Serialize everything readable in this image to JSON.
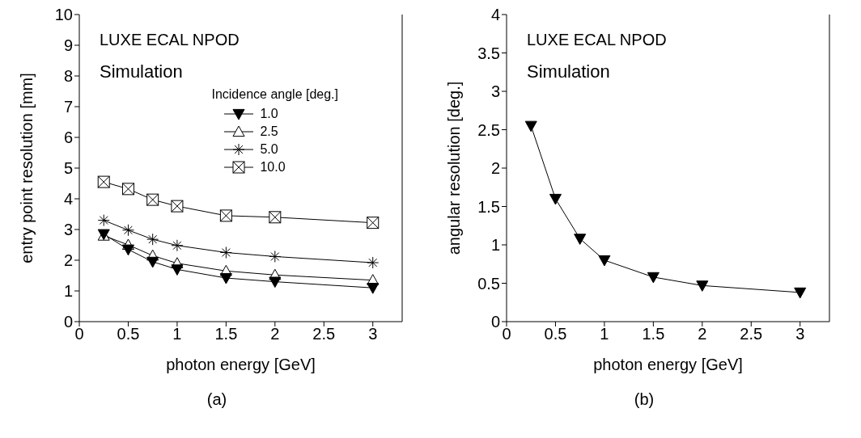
{
  "chart_data": [
    {
      "type": "line",
      "xlabel": "photon energy [GeV]",
      "ylabel": "entry point resolution [mm]",
      "legend_title": "Incidence angle [deg.]",
      "legend": "top right",
      "annotations": [
        "LUXE ECAL NPOD",
        "Simulation",
        "(a)"
      ],
      "x": [
        0.25,
        0.5,
        0.75,
        1,
        1.5,
        2,
        3
      ],
      "xlim": [
        0,
        3.3
      ],
      "xticks": [
        0,
        0.5,
        1,
        1.5,
        2,
        2.5,
        3
      ],
      "ylim": [
        0,
        10
      ],
      "yticks": [
        0,
        1,
        2,
        3,
        4,
        5,
        6,
        7,
        8,
        9,
        10
      ],
      "grid": false,
      "series": [
        {
          "name": "1.0",
          "color": "#000000",
          "marker": "triangle-down",
          "values": [
            2.85,
            2.35,
            1.95,
            1.7,
            1.42,
            1.3,
            1.1
          ]
        },
        {
          "name": "2.5",
          "color": "#000000",
          "marker": "triangle",
          "values": [
            2.8,
            2.5,
            2.15,
            1.9,
            1.65,
            1.52,
            1.35
          ]
        },
        {
          "name": "5.0",
          "color": "#000000",
          "marker": "cross",
          "values": [
            3.3,
            2.98,
            2.68,
            2.48,
            2.25,
            2.12,
            1.92
          ]
        },
        {
          "name": "10.0",
          "color": "#000000",
          "marker": "square",
          "values": [
            4.55,
            4.32,
            3.97,
            3.76,
            3.45,
            3.4,
            3.22
          ]
        }
      ]
    },
    {
      "type": "line",
      "xlabel": "photon energy [GeV]",
      "ylabel": "angular resolution [deg.]",
      "legend": false,
      "annotations": [
        "LUXE ECAL NPOD",
        "Simulation",
        "(b)"
      ],
      "x": [
        0.25,
        0.5,
        0.75,
        1,
        1.5,
        2,
        3
      ],
      "xlim": [
        0,
        3.3
      ],
      "xticks": [
        0,
        0.5,
        1,
        1.5,
        2,
        2.5,
        3
      ],
      "ylim": [
        0,
        4
      ],
      "yticks": [
        0,
        0.5,
        1,
        1.5,
        2,
        2.5,
        3,
        3.5,
        4
      ],
      "grid": false,
      "series": [
        {
          "color": "#000000",
          "marker": "triangle-down",
          "values": [
            2.55,
            1.6,
            1.08,
            0.8,
            0.58,
            0.47,
            0.38
          ]
        }
      ]
    }
  ]
}
